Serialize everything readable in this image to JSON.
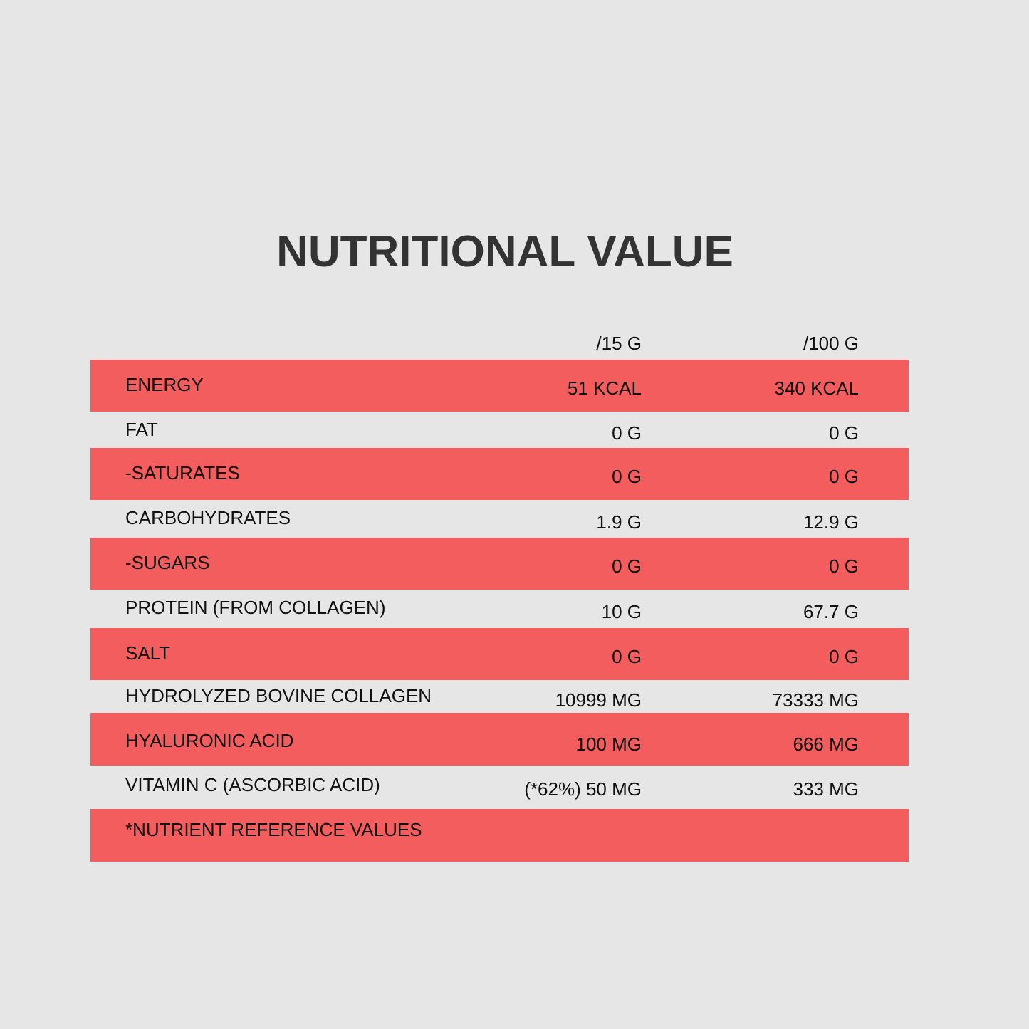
{
  "title": "NUTRITIONAL VALUE",
  "columns": [
    "/15 G",
    "/100 G"
  ],
  "rows": [
    {
      "label": "ENERGY",
      "per15": "51 KCAL",
      "per100": "340 KCAL"
    },
    {
      "label": "FAT",
      "per15": "0 G",
      "per100": "0 G"
    },
    {
      "label": "-SATURATES",
      "per15": "0 G",
      "per100": "0 G"
    },
    {
      "label": "CARBOHYDRATES",
      "per15": "1.9 G",
      "per100": "12.9 G"
    },
    {
      "label": "-SUGARS",
      "per15": "0 G",
      "per100": "0 G"
    },
    {
      "label": "PROTEIN (FROM COLLAGEN)",
      "per15": "10 G",
      "per100": "67.7 G"
    },
    {
      "label": "SALT",
      "per15": "0 G",
      "per100": "0 G"
    },
    {
      "label": "HYDROLYZED BOVINE COLLAGEN",
      "per15": "10999 MG",
      "per100": "73333 MG"
    },
    {
      "label": "HYALURONIC ACID",
      "per15": "100 MG",
      "per100": "666 MG"
    },
    {
      "label": "VITAMIN C (ASCORBIC ACID)",
      "per15": "(*62%) 50 MG",
      "per100": "333 MG"
    }
  ],
  "footnote": "*NUTRIENT REFERENCE VALUES",
  "colors": {
    "background": "#e6e6e6",
    "stripe": "#f45d5d",
    "title": "#333333",
    "text": "#111111"
  }
}
